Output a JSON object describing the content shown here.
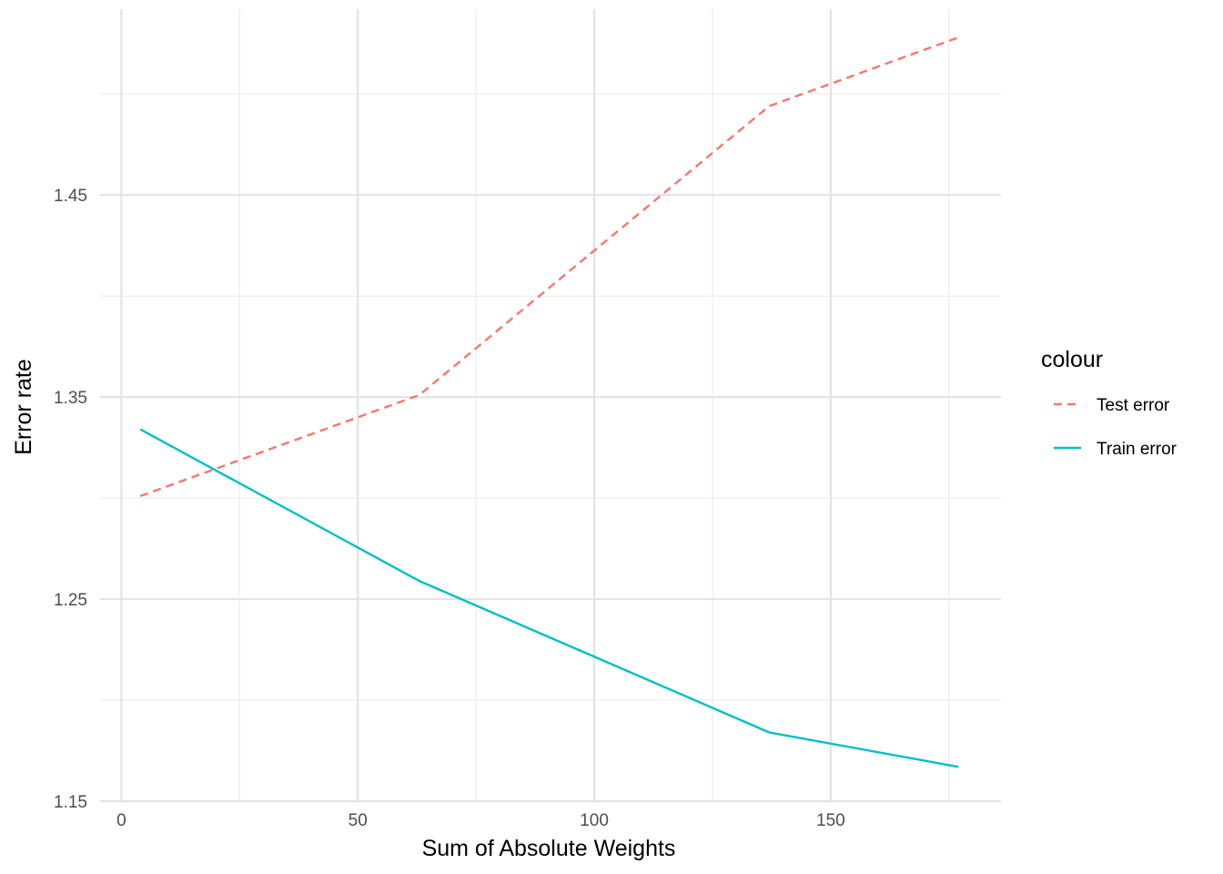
{
  "chart_data": {
    "type": "line",
    "title": "",
    "xlabel": "Sum of Absolute Weights",
    "ylabel": "Error rate",
    "xlim": [
      -4.5,
      186
    ],
    "ylim": [
      1.15,
      1.542
    ],
    "x_ticks": [
      0,
      50,
      100,
      150
    ],
    "x_tick_labels": [
      "0",
      "50",
      "100",
      "150"
    ],
    "x_minor_ticks": [
      25,
      75,
      125,
      175
    ],
    "y_ticks": [
      1.15,
      1.25,
      1.35,
      1.45
    ],
    "y_tick_labels": [
      "1.15",
      "1.25",
      "1.35",
      "1.45"
    ],
    "y_minor_ticks": [
      1.2,
      1.3,
      1.4,
      1.5
    ],
    "grid": true,
    "legend": {
      "title": "colour",
      "position": "right"
    },
    "series": [
      {
        "name": "Test error",
        "color": "#F8766D",
        "dash": "dashed",
        "x": [
          4,
          63,
          137,
          177
        ],
        "y": [
          1.301,
          1.351,
          1.494,
          1.528
        ]
      },
      {
        "name": "Train error",
        "color": "#00BFC4",
        "dash": "solid",
        "x": [
          4,
          63,
          137,
          177
        ],
        "y": [
          1.334,
          1.259,
          1.184,
          1.167
        ]
      }
    ]
  }
}
